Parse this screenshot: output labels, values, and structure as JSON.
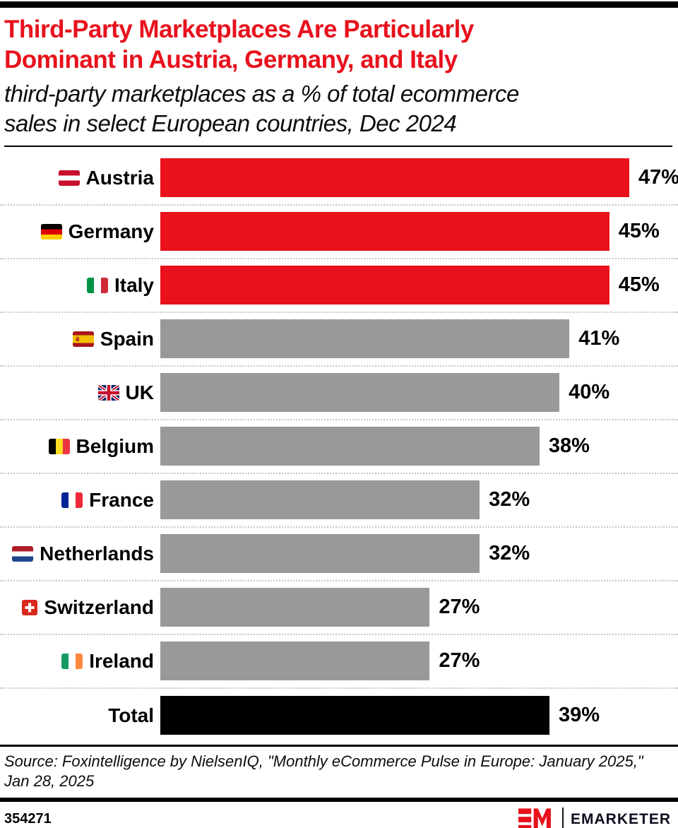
{
  "header": {
    "title_line1": "Third-Party Marketplaces Are Particularly",
    "title_line2": "Dominant in Austria, Germany, and Italy",
    "subtitle_line1": "third-party marketplaces as a % of total ecommerce",
    "subtitle_line2": "sales in select European countries, Dec 2024",
    "title_color": "#e8111c"
  },
  "chart_data": {
    "type": "bar",
    "orientation": "horizontal",
    "title": "Third-Party Marketplaces Are Particularly Dominant in Austria, Germany, and Italy",
    "subtitle": "third-party marketplaces as a % of total ecommerce sales in select European countries, Dec 2024",
    "unit": "%",
    "xlim": [
      0,
      47
    ],
    "grid": "dotted row separators",
    "categories": [
      "Austria",
      "Germany",
      "Italy",
      "Spain",
      "UK",
      "Belgium",
      "France",
      "Netherlands",
      "Switzerland",
      "Ireland",
      "Total"
    ],
    "values": [
      47,
      45,
      45,
      41,
      40,
      38,
      32,
      32,
      27,
      27,
      39
    ],
    "labels": [
      "47%",
      "45%",
      "45%",
      "41%",
      "40%",
      "38%",
      "32%",
      "32%",
      "27%",
      "27%",
      "39%"
    ],
    "colors": {
      "highlight": "#e8111c",
      "default": "#999999",
      "total": "#000000"
    },
    "rows": [
      {
        "country": "Austria",
        "value": 47,
        "label": "47%",
        "flag": "austria-flag",
        "color": "#e8111c"
      },
      {
        "country": "Germany",
        "value": 45,
        "label": "45%",
        "flag": "germany-flag",
        "color": "#e8111c"
      },
      {
        "country": "Italy",
        "value": 45,
        "label": "45%",
        "flag": "italy-flag",
        "color": "#e8111c"
      },
      {
        "country": "Spain",
        "value": 41,
        "label": "41%",
        "flag": "spain-flag",
        "color": "#999999"
      },
      {
        "country": "UK",
        "value": 40,
        "label": "40%",
        "flag": "uk-flag",
        "color": "#999999"
      },
      {
        "country": "Belgium",
        "value": 38,
        "label": "38%",
        "flag": "belgium-flag",
        "color": "#999999"
      },
      {
        "country": "France",
        "value": 32,
        "label": "32%",
        "flag": "france-flag",
        "color": "#999999"
      },
      {
        "country": "Netherlands",
        "value": 32,
        "label": "32%",
        "flag": "netherlands-flag",
        "color": "#999999"
      },
      {
        "country": "Switzerland",
        "value": 27,
        "label": "27%",
        "flag": "switzerland-flag",
        "color": "#999999"
      },
      {
        "country": "Ireland",
        "value": 27,
        "label": "27%",
        "flag": "ireland-flag",
        "color": "#999999"
      },
      {
        "country": "Total",
        "value": 39,
        "label": "39%",
        "flag": null,
        "color": "#000000"
      }
    ]
  },
  "footer": {
    "source": "Source: Foxintelligence by NielsenIQ, \"Monthly eCommerce Pulse in Europe: January 2025,\" Jan 28, 2025",
    "chart_id": "354271",
    "brand": "EMARKETER"
  }
}
